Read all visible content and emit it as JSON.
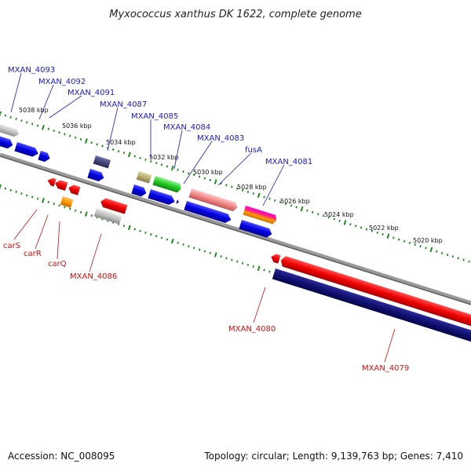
{
  "title": "Myxococcus xanthus DK 1622, complete genome",
  "footer": {
    "accession": "Accession: NC_008095",
    "stats": "Topology: circular; Length: 9,139,763 bp; Genes: 7,410"
  },
  "colors": {
    "label_forward": "#1a1acc",
    "label_reverse": "#cc1111",
    "backbone": "#8a8a8a",
    "ticks": "#1f8a1f"
  },
  "scale_labels": [
    "5038 kbp",
    "5036 kbp",
    "5034 kbp",
    "5032 kbp",
    "5030 kbp",
    "5028 kbp",
    "5026 kbp",
    "5024 kbp",
    "5022 kbp",
    "5020 kbp"
  ],
  "labels_forward": [
    "MXAN_4093",
    "MXAN_4092",
    "MXAN_4091",
    "MXAN_4087",
    "MXAN_4085",
    "MXAN_4084",
    "MXAN_4083",
    "fusA",
    "MXAN_4081"
  ],
  "labels_reverse": [
    "carS",
    "carR",
    "carQ",
    "MXAN_4086",
    "MXAN_4080",
    "MXAN_4079"
  ]
}
